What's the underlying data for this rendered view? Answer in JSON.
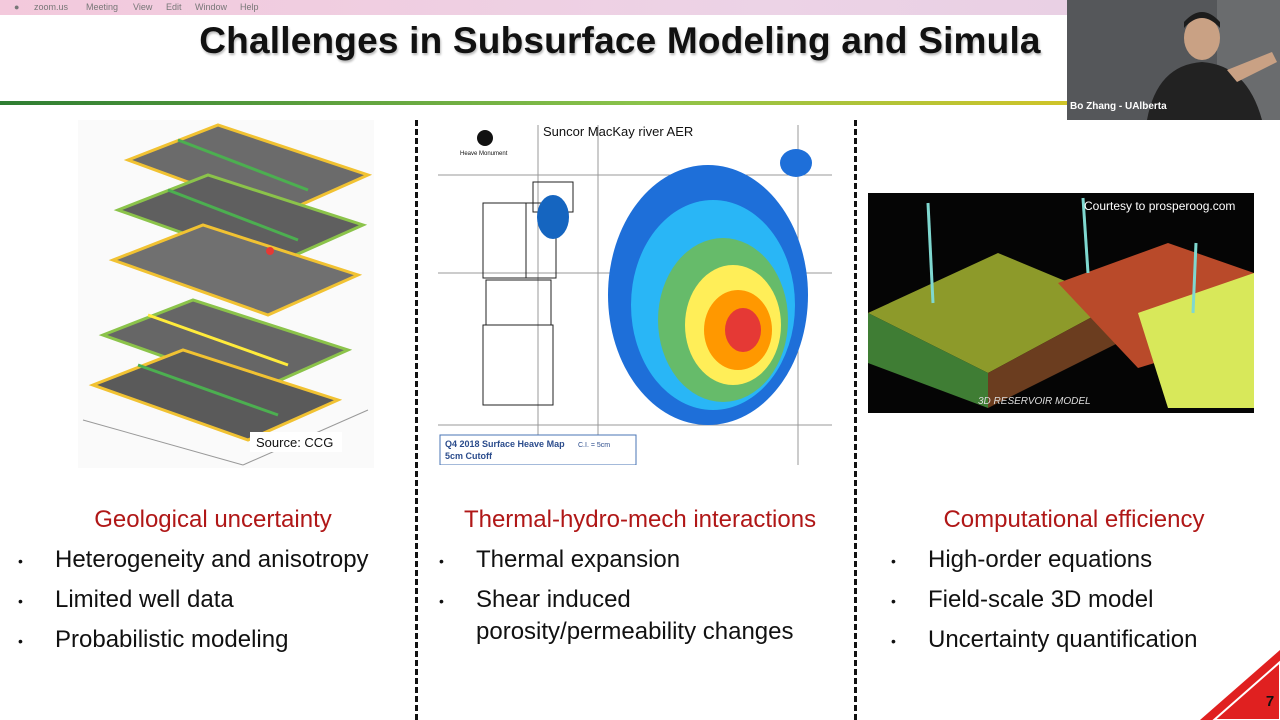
{
  "menubar": {
    "items": [
      "zoom.us",
      "Meeting",
      "View",
      "Edit",
      "Window",
      "Help"
    ]
  },
  "slide": {
    "title": "Challenges in Subsurface Modeling and Simula",
    "number": "7",
    "columns": [
      {
        "image_texts": [
          "Source: CCG"
        ],
        "heading": "Geological uncertainty",
        "bullets": [
          "Heterogeneity and anisotropy",
          "Limited well data",
          "Probabilistic modeling"
        ]
      },
      {
        "image_texts": [
          "Suncor MacKay river AER",
          "Heave Monument",
          "Q4 2018 Surface Heave Map",
          "C.I. = 5cm",
          "5cm Cutoff"
        ],
        "heading": "Thermal-hydro-mech interactions",
        "bullets": [
          "Thermal expansion",
          "Shear induced porosity/permeability changes"
        ]
      },
      {
        "image_texts": [
          "Courtesy to prosperoog.com",
          "3D RESERVOIR MODEL"
        ],
        "heading": "Computational efficiency",
        "bullets": [
          "High-order equations",
          "Field-scale 3D model",
          "Uncertainty quantification"
        ]
      }
    ]
  },
  "webcam": {
    "label": "Bo Zhang - UAlberta"
  }
}
